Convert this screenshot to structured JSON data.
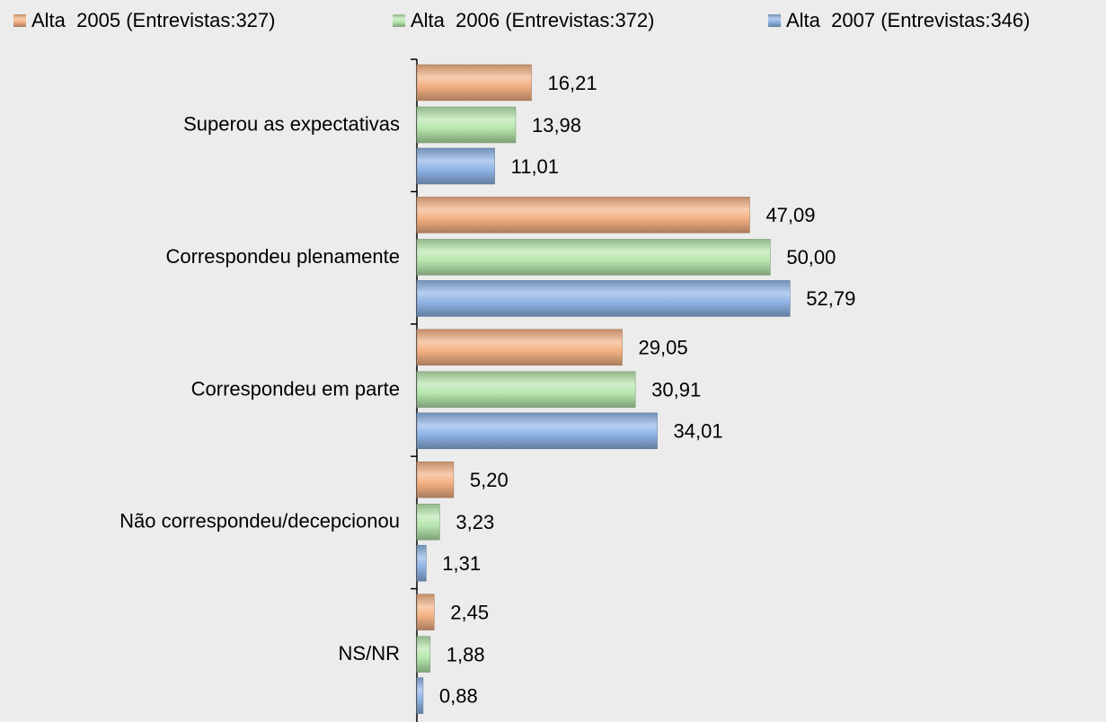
{
  "chart_data": {
    "type": "barh",
    "categories": [
      "Superou as expectativas",
      "Correspondeu plenamente",
      "Correspondeu em parte",
      "Não correspondeu/decepcionou",
      "NS/NR"
    ],
    "series": [
      {
        "name": "Alta  2005 (Entrevistas:327)",
        "color": "#f4b183",
        "values": [
          16.21,
          47.09,
          29.05,
          5.2,
          2.45
        ],
        "value_labels": [
          "16,21",
          "47,09",
          "29,05",
          "5,20",
          "2,45"
        ]
      },
      {
        "name": "Alta  2006 (Entrevistas:372)",
        "color": "#b6e6ad",
        "values": [
          13.98,
          50.0,
          30.91,
          3.23,
          1.88
        ],
        "value_labels": [
          "13,98",
          "50,00",
          "30,91",
          "3,23",
          "1,88"
        ]
      },
      {
        "name": "Alta  2007 (Entrevistas:346)",
        "color": "#8fb4e6",
        "values": [
          11.01,
          52.79,
          34.01,
          1.31,
          0.88
        ],
        "value_labels": [
          "11,01",
          "52,79",
          "34,01",
          "1,31",
          "0,88"
        ]
      }
    ],
    "xlim": [
      0,
      60
    ]
  }
}
